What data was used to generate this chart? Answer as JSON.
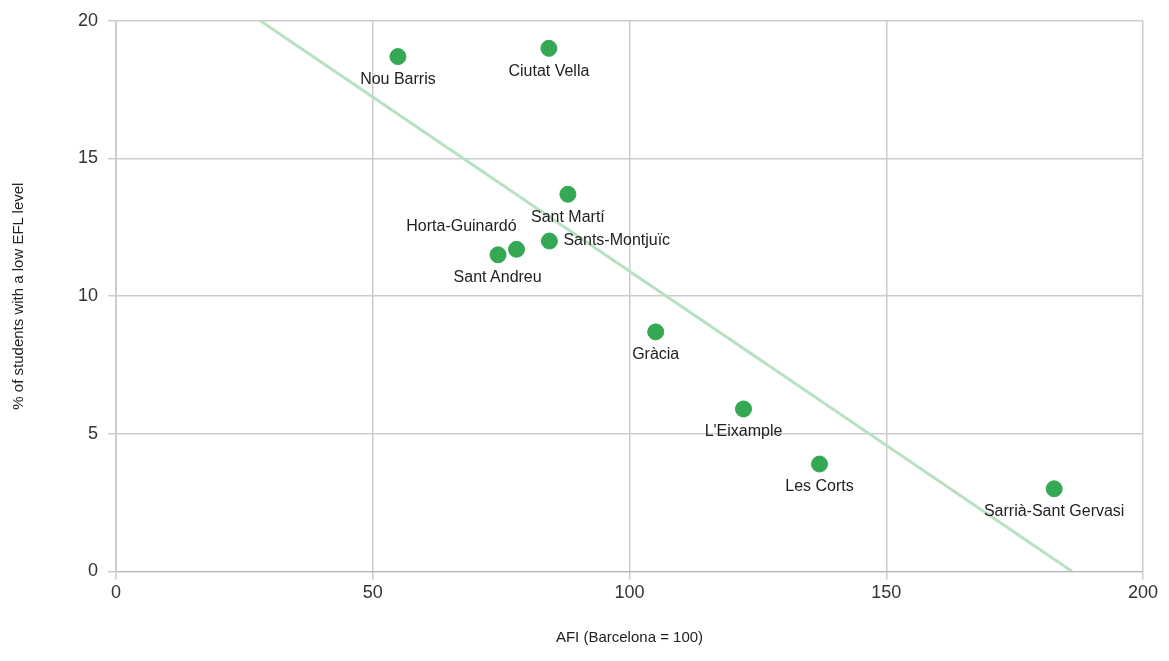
{
  "chart_data": {
    "type": "scatter",
    "xlabel": "AFI (Barcelona = 100)",
    "ylabel": "% of students with a low EFL level",
    "x": [
      54.9,
      84.3,
      88.0,
      78.0,
      74.4,
      84.4,
      105.1,
      122.2,
      137.0,
      182.7
    ],
    "series": [
      {
        "color": "#34a853",
        "marker": "circle",
        "values": [
          18.7,
          19.0,
          13.7,
          11.7,
          11.5,
          12.0,
          8.7,
          5.9,
          3.9,
          3.0
        ]
      },
      {
        "type": "line",
        "color": "#b7e1c1",
        "marker": "none",
        "line_style": "solid",
        "x": [
          28.1,
          186.2
        ],
        "values": [
          20,
          0
        ]
      }
    ],
    "annotations": [
      {
        "text": "Nou Barris",
        "x": 54.9,
        "y": 18.7
      },
      {
        "text": "Ciutat Vella",
        "x": 84.3,
        "y": 19.0
      },
      {
        "text": "Sant Martí",
        "x": 88.0,
        "y": 13.7
      },
      {
        "text": "Horta-Guinardó",
        "x": 78.0,
        "y": 11.7
      },
      {
        "text": "Sant Andreu",
        "x": 74.4,
        "y": 11.5
      },
      {
        "text": "Sants-Montjuïc",
        "x": 84.4,
        "y": 12.0
      },
      {
        "text": "Gràcia",
        "x": 105.1,
        "y": 8.7
      },
      {
        "text": "L'Eixample",
        "x": 122.2,
        "y": 5.9
      },
      {
        "text": "Les Corts",
        "x": 137.0,
        "y": 3.9
      },
      {
        "text": "Sarrià-Sant Gervasi",
        "x": 182.7,
        "y": 3.0
      }
    ],
    "xlim": [
      0,
      200
    ],
    "xticks": [
      0,
      50,
      100,
      150,
      200
    ],
    "ylim": [
      0,
      20
    ],
    "yticks": [
      0,
      5,
      10,
      15,
      20
    ],
    "grid": true,
    "legend": false
  }
}
